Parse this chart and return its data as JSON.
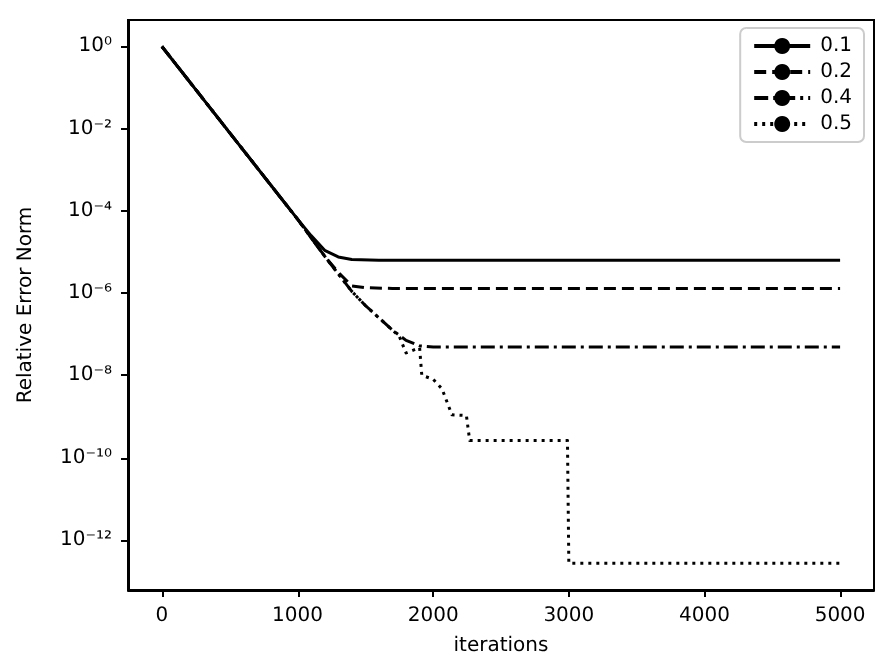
{
  "chart_data": {
    "type": "line",
    "xlabel": "iterations",
    "ylabel": "Relative Error Norm",
    "log": "y",
    "grid": false,
    "legend": "top right",
    "marker": "none",
    "xlim": [
      -250,
      5250
    ],
    "xticks": [
      0,
      1000,
      2000,
      3000,
      4000,
      5000
    ],
    "ylim": [
      6e-14,
      4.4
    ],
    "yticks": [
      {
        "value": 1,
        "label": "10⁰"
      },
      {
        "value": 0.01,
        "label": "10⁻²"
      },
      {
        "value": 0.0001,
        "label": "10⁻⁴"
      },
      {
        "value": 1e-06,
        "label": "10⁻⁶"
      },
      {
        "value": 1e-08,
        "label": "10⁻⁸"
      },
      {
        "value": 1e-10,
        "label": "10⁻¹⁰"
      },
      {
        "value": 1e-12,
        "label": "10⁻¹²"
      }
    ],
    "series": [
      {
        "name": "0.1",
        "color": "#000000",
        "line_style": "solid",
        "x": [
          0,
          500,
          1000,
          1100,
          1200,
          1300,
          1400,
          1600,
          5000
        ],
        "values": [
          1,
          0.0079,
          6.3e-05,
          2.5e-05,
          1.1e-05,
          7.6e-06,
          6.6e-06,
          6.3e-06,
          6.3e-06
        ]
      },
      {
        "name": "0.2",
        "color": "#000000",
        "line_style": "dashed",
        "x": [
          0,
          500,
          1000,
          1200,
          1300,
          1400,
          1500,
          1700,
          5000
        ],
        "values": [
          1,
          0.0079,
          6.3e-05,
          7.9e-06,
          3.2e-06,
          1.5e-06,
          1.35e-06,
          1.3e-06,
          1.3e-06
        ]
      },
      {
        "name": "0.4",
        "color": "#000000",
        "line_style": "dashdot",
        "x": [
          0,
          500,
          1000,
          1200,
          1400,
          1500,
          1600,
          1700,
          1800,
          1900,
          2000,
          5000
        ],
        "values": [
          1,
          0.0079,
          6.3e-05,
          7.9e-06,
          1.1e-06,
          5e-07,
          2.5e-07,
          1.26e-07,
          7.1e-08,
          5.2e-08,
          4.9e-08,
          4.9e-08
        ]
      },
      {
        "name": "0.5",
        "color": "#000000",
        "line_style": "dotted",
        "x": [
          0,
          500,
          1000,
          1200,
          1400,
          1500,
          1600,
          1750,
          1800,
          1900,
          1916,
          2000,
          2065,
          2138,
          2245,
          2269,
          2990,
          3000,
          5000
        ],
        "values": [
          1,
          0.0079,
          6.3e-05,
          7.9e-06,
          1.1e-06,
          5e-07,
          2.5e-07,
          8.9e-08,
          3.5e-08,
          4.7e-08,
          1e-08,
          8e-09,
          4.7e-09,
          1.1e-09,
          1.05e-09,
          2.6e-10,
          2.6e-10,
          2.7e-13,
          2.7e-13
        ]
      }
    ]
  }
}
